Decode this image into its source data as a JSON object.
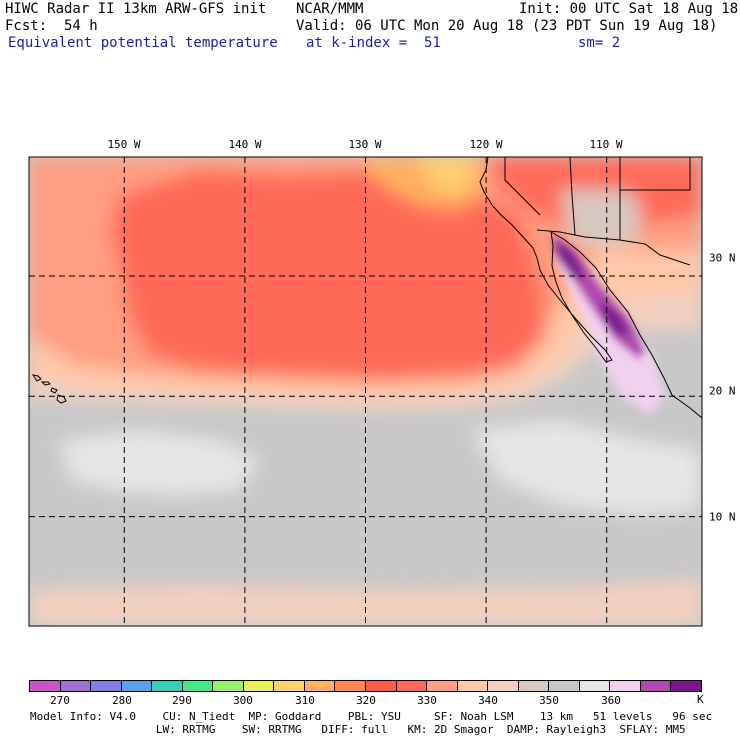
{
  "header": {
    "title": "HIWC Radar II 13km ARW-GFS init",
    "org": "NCAR/MMM",
    "init": "Init: 00 UTC Sat 18 Aug 18",
    "fcst_label": "Fcst:",
    "fcst_value": "54 h",
    "valid": "Valid: 06 UTC Mon 20 Aug 18 (23 PDT Sun 19 Aug 18)",
    "field": "Equivalent potential temperature",
    "level": "at k-index =  51",
    "smooth": "sm= 2"
  },
  "map": {
    "lon_labels": [
      "150 W",
      "140 W",
      "130 W",
      "120 W",
      "110 W"
    ],
    "lat_labels": [
      "30 N",
      "20 N",
      "10 N"
    ],
    "lon_range": [
      -157.9,
      -102.1
    ],
    "lat_range": [
      0.9,
      39.9
    ],
    "gridline_lons": [
      -150,
      -140,
      -130,
      -120,
      -110
    ],
    "gridline_lats": [
      30,
      20,
      10
    ]
  },
  "colorbar": {
    "units": "K",
    "tick_labels": [
      "270",
      "280",
      "290",
      "300",
      "310",
      "320",
      "330",
      "340",
      "350",
      "360"
    ],
    "colors": [
      "#c957c9",
      "#a46fd1",
      "#7f7fe8",
      "#5aa2ec",
      "#38d0b8",
      "#46e88c",
      "#9af06a",
      "#e9f05a",
      "#ffd070",
      "#ffb060",
      "#ff8a50",
      "#ff5a48",
      "#ff6a58",
      "#ff9e80",
      "#ffc8a8",
      "#f3d0bf",
      "#d8c8c0",
      "#c8c8c8",
      "#e6e6e6",
      "#f2d0ef",
      "#b04ab0",
      "#7a1a8a"
    ]
  },
  "footer": {
    "line1": "Model Info: V4.0    CU: N_Tiedt  MP: Goddard    PBL: YSU     SF: Noah LSM    13 km   51 levels   96 sec",
    "line2": "                   LW: RRTMG    SW: RRTMG   DIFF: full   KM: 2D Smagor  DAMP: Rayleigh3  SFLAY: MM5"
  }
}
